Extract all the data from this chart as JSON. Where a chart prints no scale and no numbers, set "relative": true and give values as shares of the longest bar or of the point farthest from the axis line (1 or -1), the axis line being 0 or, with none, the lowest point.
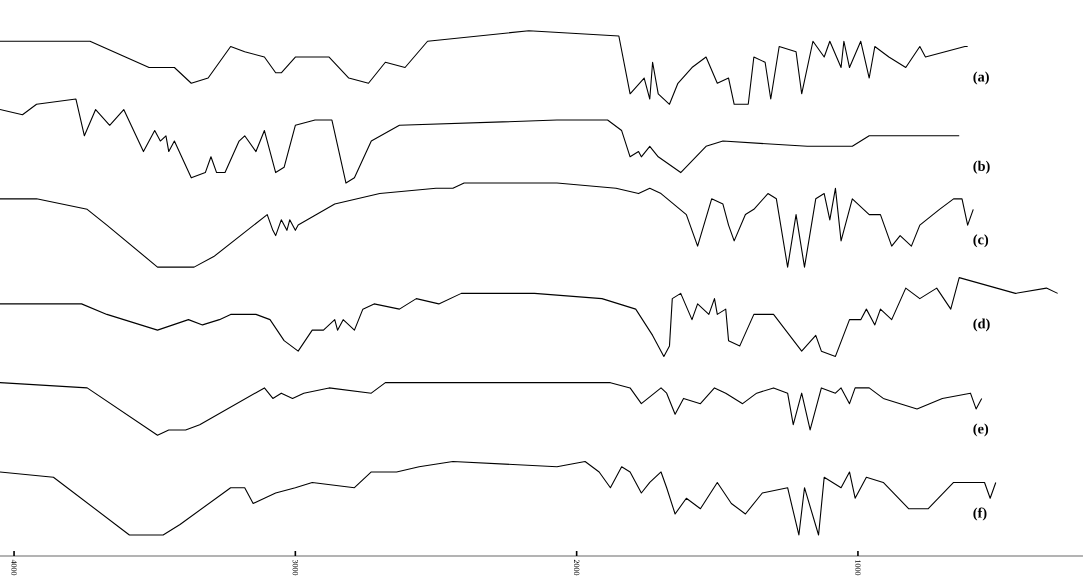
{
  "chart_data": {
    "type": "line",
    "relative": true,
    "xlim": [
      4050,
      200
    ],
    "xticks": [
      4000,
      3000,
      2000,
      1000
    ],
    "series": [
      {
        "name": "(a)",
        "color": "#000000",
        "x": [
          4050,
          3730,
          3520,
          3430,
          3370,
          3310,
          3230,
          3180,
          3110,
          3070,
          3050,
          3000,
          2880,
          2810,
          2740,
          2680,
          2610,
          2530,
          2170,
          1850,
          1810,
          1760,
          1740,
          1730,
          1710,
          1670,
          1640,
          1590,
          1540,
          1500,
          1460,
          1440,
          1390,
          1370,
          1330,
          1310,
          1280,
          1220,
          1200,
          1160,
          1120,
          1100,
          1060,
          1050,
          1030,
          990,
          960,
          940,
          890,
          830,
          780,
          760,
          620,
          610
        ],
        "values": [
          0.98,
          0.98,
          0.93,
          0.93,
          0.9,
          0.91,
          0.97,
          0.96,
          0.95,
          0.92,
          0.92,
          0.95,
          0.95,
          0.91,
          0.9,
          0.94,
          0.93,
          0.98,
          1.0,
          0.99,
          0.88,
          0.91,
          0.87,
          0.94,
          0.88,
          0.86,
          0.9,
          0.93,
          0.95,
          0.9,
          0.91,
          0.86,
          0.86,
          0.95,
          0.94,
          0.87,
          0.97,
          0.96,
          0.88,
          0.98,
          0.95,
          0.98,
          0.93,
          0.98,
          0.93,
          0.98,
          0.91,
          0.97,
          0.95,
          0.93,
          0.97,
          0.95,
          0.97,
          0.97
        ]
      },
      {
        "name": "(b)",
        "color": "#000000",
        "x": [
          4050,
          3970,
          3920,
          3780,
          3750,
          3710,
          3660,
          3610,
          3540,
          3500,
          3480,
          3460,
          3450,
          3430,
          3370,
          3320,
          3300,
          3280,
          3250,
          3200,
          3180,
          3140,
          3110,
          3070,
          3040,
          3000,
          2930,
          2870,
          2820,
          2790,
          2730,
          2630,
          2070,
          1890,
          1840,
          1810,
          1780,
          1770,
          1740,
          1710,
          1630,
          1540,
          1480,
          1180,
          1020,
          960,
          840,
          640
        ],
        "values": [
          0.85,
          0.84,
          0.86,
          0.87,
          0.8,
          0.85,
          0.82,
          0.85,
          0.77,
          0.81,
          0.79,
          0.8,
          0.77,
          0.79,
          0.72,
          0.73,
          0.76,
          0.73,
          0.73,
          0.79,
          0.8,
          0.77,
          0.81,
          0.73,
          0.74,
          0.82,
          0.83,
          0.83,
          0.71,
          0.72,
          0.79,
          0.82,
          0.83,
          0.83,
          0.81,
          0.76,
          0.77,
          0.76,
          0.78,
          0.76,
          0.73,
          0.78,
          0.79,
          0.78,
          0.78,
          0.8,
          0.8,
          0.8
        ]
      },
      {
        "name": "(c)",
        "color": "#000000",
        "x": [
          4050,
          3920,
          3740,
          3670,
          3490,
          3360,
          3290,
          3100,
          3080,
          3070,
          3050,
          3030,
          3020,
          3000,
          2990,
          2860,
          2700,
          2500,
          2440,
          2400,
          2070,
          1860,
          1780,
          1740,
          1700,
          1610,
          1570,
          1520,
          1480,
          1460,
          1440,
          1400,
          1370,
          1320,
          1290,
          1250,
          1220,
          1190,
          1150,
          1120,
          1100,
          1080,
          1060,
          1020,
          960,
          920,
          880,
          850,
          810,
          780,
          710,
          660,
          630,
          610,
          590
        ],
        "values": [
          0.68,
          0.68,
          0.66,
          0.63,
          0.55,
          0.55,
          0.57,
          0.65,
          0.62,
          0.61,
          0.64,
          0.62,
          0.64,
          0.62,
          0.63,
          0.67,
          0.69,
          0.7,
          0.7,
          0.71,
          0.71,
          0.7,
          0.69,
          0.7,
          0.69,
          0.65,
          0.59,
          0.68,
          0.67,
          0.63,
          0.6,
          0.65,
          0.66,
          0.69,
          0.68,
          0.55,
          0.65,
          0.55,
          0.68,
          0.69,
          0.64,
          0.7,
          0.6,
          0.68,
          0.65,
          0.65,
          0.59,
          0.61,
          0.59,
          0.63,
          0.66,
          0.68,
          0.68,
          0.63,
          0.66
        ]
      },
      {
        "name": "(d)",
        "color": "#000000",
        "x": [
          4050,
          3760,
          3670,
          3490,
          3380,
          3330,
          3270,
          3230,
          3140,
          3090,
          3040,
          2990,
          2940,
          2900,
          2860,
          2850,
          2830,
          2790,
          2760,
          2720,
          2630,
          2570,
          2490,
          2410,
          2150,
          1910,
          1790,
          1730,
          1690,
          1670,
          1660,
          1630,
          1590,
          1570,
          1530,
          1510,
          1500,
          1470,
          1460,
          1420,
          1370,
          1300,
          1200,
          1150,
          1130,
          1080,
          1030,
          990,
          970,
          940,
          920,
          880,
          830,
          780,
          720,
          670,
          640,
          440,
          330,
          290
        ],
        "values": [
          0.48,
          0.48,
          0.46,
          0.43,
          0.45,
          0.44,
          0.45,
          0.46,
          0.46,
          0.45,
          0.41,
          0.39,
          0.43,
          0.43,
          0.45,
          0.43,
          0.45,
          0.43,
          0.47,
          0.48,
          0.47,
          0.49,
          0.48,
          0.5,
          0.5,
          0.49,
          0.47,
          0.42,
          0.38,
          0.4,
          0.49,
          0.5,
          0.45,
          0.48,
          0.46,
          0.49,
          0.46,
          0.47,
          0.41,
          0.4,
          0.46,
          0.46,
          0.39,
          0.42,
          0.39,
          0.38,
          0.45,
          0.45,
          0.47,
          0.44,
          0.47,
          0.45,
          0.51,
          0.49,
          0.51,
          0.47,
          0.53,
          0.5,
          0.51,
          0.5
        ]
      },
      {
        "name": "(e)",
        "color": "#000000",
        "x": [
          4050,
          3740,
          3490,
          3450,
          3390,
          3340,
          3110,
          3080,
          3050,
          3010,
          2970,
          2880,
          2730,
          2680,
          2480,
          2070,
          1880,
          1810,
          1770,
          1700,
          1680,
          1650,
          1620,
          1560,
          1510,
          1470,
          1410,
          1360,
          1300,
          1250,
          1230,
          1200,
          1170,
          1130,
          1080,
          1060,
          1030,
          1010,
          960,
          910,
          850,
          790,
          700,
          600,
          580,
          560
        ],
        "values": [
          0.33,
          0.32,
          0.23,
          0.24,
          0.24,
          0.25,
          0.32,
          0.3,
          0.31,
          0.3,
          0.31,
          0.32,
          0.31,
          0.33,
          0.33,
          0.33,
          0.33,
          0.32,
          0.29,
          0.32,
          0.31,
          0.27,
          0.3,
          0.29,
          0.32,
          0.31,
          0.29,
          0.31,
          0.32,
          0.31,
          0.25,
          0.31,
          0.24,
          0.32,
          0.31,
          0.32,
          0.29,
          0.32,
          0.32,
          0.3,
          0.29,
          0.28,
          0.3,
          0.31,
          0.28,
          0.3
        ]
      },
      {
        "name": "(f)",
        "color": "#000000",
        "x": [
          4050,
          3860,
          3590,
          3560,
          3500,
          3470,
          3410,
          3230,
          3180,
          3150,
          3110,
          3070,
          3000,
          2940,
          2790,
          2730,
          2640,
          2560,
          2440,
          2070,
          1970,
          1920,
          1880,
          1840,
          1810,
          1770,
          1740,
          1700,
          1680,
          1650,
          1610,
          1560,
          1500,
          1450,
          1400,
          1340,
          1250,
          1210,
          1190,
          1140,
          1120,
          1060,
          1030,
          1010,
          970,
          910,
          820,
          750,
          660,
          550,
          530,
          510
        ],
        "values": [
          0.16,
          0.15,
          0.04,
          0.04,
          0.04,
          0.04,
          0.06,
          0.13,
          0.13,
          0.1,
          0.11,
          0.12,
          0.13,
          0.14,
          0.13,
          0.16,
          0.16,
          0.17,
          0.18,
          0.17,
          0.18,
          0.16,
          0.13,
          0.17,
          0.16,
          0.12,
          0.14,
          0.16,
          0.13,
          0.08,
          0.11,
          0.09,
          0.14,
          0.1,
          0.08,
          0.12,
          0.13,
          0.04,
          0.13,
          0.04,
          0.15,
          0.13,
          0.16,
          0.11,
          0.15,
          0.14,
          0.09,
          0.09,
          0.14,
          0.14,
          0.11,
          0.14
        ]
      }
    ]
  }
}
